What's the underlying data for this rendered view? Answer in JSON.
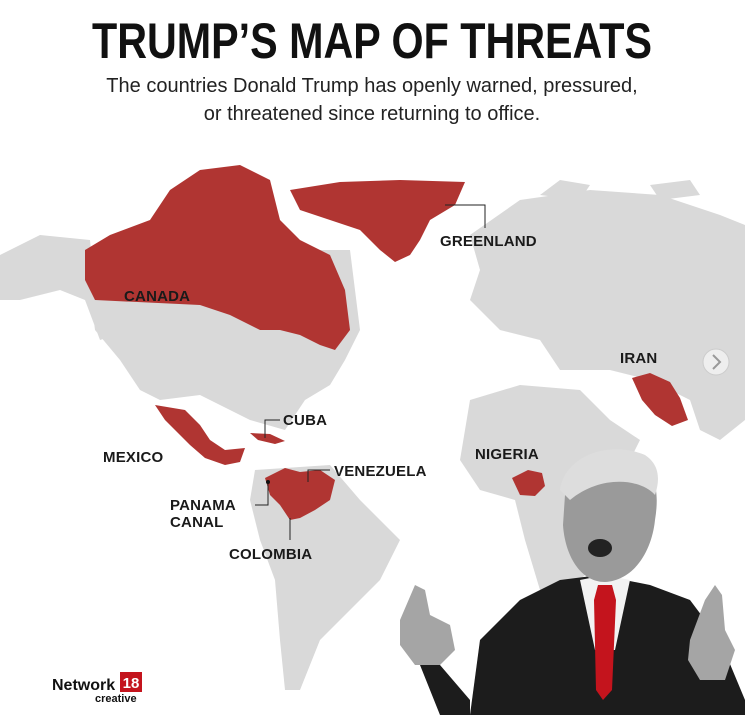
{
  "header": {
    "title": "TRUMP’S MAP OF THREATS",
    "subtitle": [
      "The countries Donald Trump has openly warned, pressured,",
      "or threatened since returning to office."
    ]
  },
  "labels": [
    {
      "label": "GREENLAND"
    },
    {
      "label": "CANADA"
    },
    {
      "label": "IRAN"
    },
    {
      "label": "CUBA"
    },
    {
      "label": "MEXICO"
    },
    {
      "label": "NIGERIA"
    },
    {
      "label": "VENEZUELA"
    },
    {
      "lines": [
        "PANAMA",
        "CANAL"
      ]
    },
    {
      "label": "COLOMBIA"
    }
  ],
  "logo": {
    "name": "Network",
    "number": "18",
    "tagline": "creative"
  }
}
